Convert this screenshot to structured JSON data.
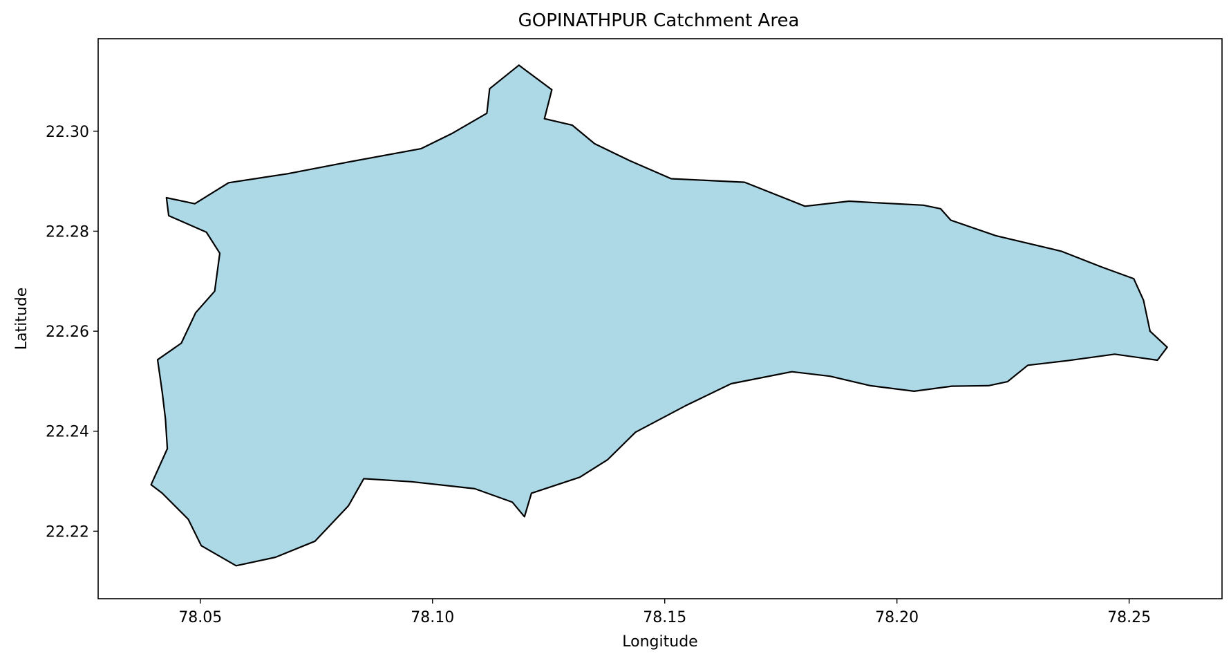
{
  "chart_data": {
    "type": "map",
    "title": "GOPINATHPUR Catchment Area",
    "xlabel": "Longitude",
    "ylabel": "Latitude",
    "xlim": [
      78.028,
      78.27
    ],
    "ylim": [
      22.2065,
      22.3185
    ],
    "x_ticks": [
      78.05,
      78.1,
      78.15,
      78.2,
      78.25
    ],
    "x_tick_labels": [
      "78.05",
      "78.10",
      "78.15",
      "78.20",
      "78.25"
    ],
    "y_ticks": [
      22.22,
      22.24,
      22.26,
      22.28,
      22.3
    ],
    "y_tick_labels": [
      "22.22",
      "22.24",
      "22.26",
      "22.28",
      "22.30"
    ],
    "fill_color": "#add8e6",
    "edge_color": "#000000",
    "boundary": [
      [
        78.0427,
        22.2867
      ],
      [
        78.0488,
        22.2855
      ],
      [
        78.0561,
        22.2897
      ],
      [
        78.0688,
        22.2915
      ],
      [
        78.0822,
        22.2939
      ],
      [
        78.0975,
        22.2965
      ],
      [
        78.1041,
        22.2995
      ],
      [
        78.1117,
        22.3036
      ],
      [
        78.1123,
        22.3085
      ],
      [
        78.1186,
        22.3132
      ],
      [
        78.1257,
        22.3083
      ],
      [
        78.1241,
        22.3025
      ],
      [
        78.1301,
        22.3012
      ],
      [
        78.1349,
        22.2975
      ],
      [
        78.1425,
        22.2941
      ],
      [
        78.1514,
        22.2905
      ],
      [
        78.1672,
        22.2898
      ],
      [
        78.1802,
        22.285
      ],
      [
        78.1897,
        22.286
      ],
      [
        78.1953,
        22.2857
      ],
      [
        78.2057,
        22.2852
      ],
      [
        78.2094,
        22.2845
      ],
      [
        78.2116,
        22.2822
      ],
      [
        78.2213,
        22.2791
      ],
      [
        78.2354,
        22.276
      ],
      [
        78.2442,
        22.2728
      ],
      [
        78.251,
        22.2705
      ],
      [
        78.2531,
        22.2662
      ],
      [
        78.2545,
        22.26
      ],
      [
        78.2582,
        22.2568
      ],
      [
        78.2561,
        22.2542
      ],
      [
        78.2469,
        22.2554
      ],
      [
        78.2367,
        22.2541
      ],
      [
        78.2282,
        22.2532
      ],
      [
        78.2238,
        22.2499
      ],
      [
        78.2197,
        22.2491
      ],
      [
        78.2118,
        22.249
      ],
      [
        78.2037,
        22.248
      ],
      [
        78.1943,
        22.2491
      ],
      [
        78.1856,
        22.251
      ],
      [
        78.1774,
        22.2519
      ],
      [
        78.1643,
        22.2495
      ],
      [
        78.1545,
        22.2451
      ],
      [
        78.1437,
        22.2398
      ],
      [
        78.1377,
        22.2343
      ],
      [
        78.1317,
        22.2308
      ],
      [
        78.1213,
        22.2276
      ],
      [
        78.1198,
        22.2229
      ],
      [
        78.1172,
        22.2258
      ],
      [
        78.1091,
        22.2285
      ],
      [
        78.0955,
        22.2299
      ],
      [
        78.0852,
        22.2305
      ],
      [
        78.0819,
        22.2251
      ],
      [
        78.0747,
        22.218
      ],
      [
        78.0662,
        22.2148
      ],
      [
        78.0577,
        22.2131
      ],
      [
        78.0502,
        22.2171
      ],
      [
        78.0474,
        22.2224
      ],
      [
        78.0418,
        22.2276
      ],
      [
        78.0394,
        22.2293
      ],
      [
        78.0429,
        22.2365
      ],
      [
        78.0425,
        22.2424
      ],
      [
        78.0418,
        22.2478
      ],
      [
        78.0408,
        22.2543
      ],
      [
        78.0459,
        22.2576
      ],
      [
        78.049,
        22.2637
      ],
      [
        78.0531,
        22.268
      ],
      [
        78.0542,
        22.2756
      ],
      [
        78.0513,
        22.2798
      ],
      [
        78.0432,
        22.2831
      ]
    ]
  }
}
